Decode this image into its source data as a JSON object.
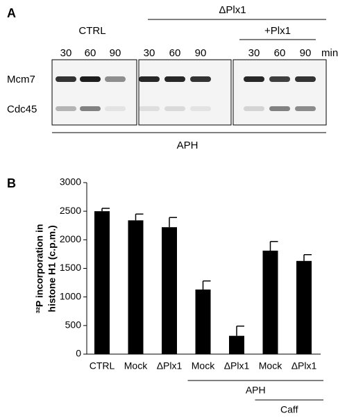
{
  "blot": {
    "panel_label": "A",
    "ctrl": "CTRL",
    "dplx": "ΔPlx1",
    "plx": "+Plx1",
    "times": [
      "30",
      "60",
      "90",
      "30",
      "60",
      "90",
      "30",
      "60",
      "90"
    ],
    "unit": "min",
    "rows": [
      "Mcm7",
      "Cdc45"
    ],
    "treatment": "APH"
  },
  "chart_data": {
    "type": "bar",
    "panel_label": "B",
    "ylabel": [
      "³²P incorporation in",
      "histone H1 (c.p.m.)"
    ],
    "categories": [
      "CTRL",
      "Mock",
      "ΔPlx1",
      "Mock",
      "ΔPlx1",
      "Mock",
      "ΔPlx1"
    ],
    "values": [
      2500,
      2340,
      2220,
      1130,
      320,
      1810,
      1630
    ],
    "errors": [
      50,
      110,
      170,
      150,
      170,
      160,
      110
    ],
    "color": "#000000",
    "ylim": [
      0,
      3000
    ],
    "yticks": [
      0,
      500,
      1000,
      1500,
      2000,
      2500,
      3000
    ],
    "groups": [
      "APH",
      "Caff"
    ]
  }
}
